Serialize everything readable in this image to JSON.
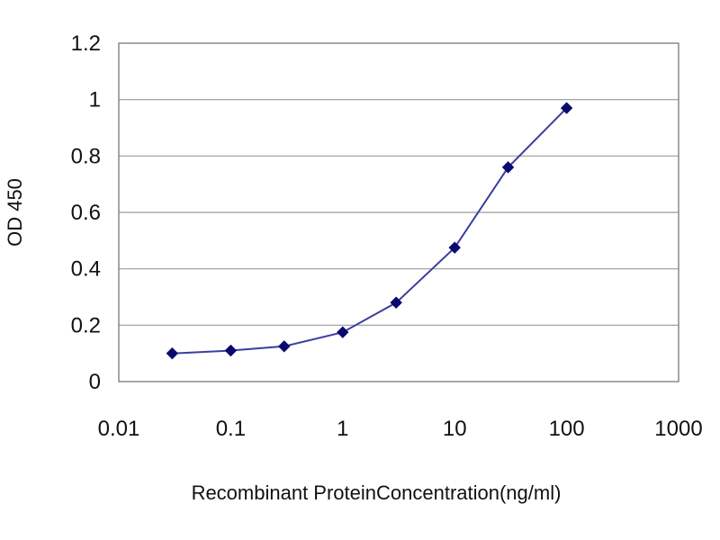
{
  "chart_data": {
    "type": "line",
    "title": "",
    "xlabel": "Recombinant ProteinConcentration(ng/ml)",
    "ylabel": "OD 450",
    "x_scale": "log",
    "xlim": [
      0.01,
      1000
    ],
    "ylim": [
      0,
      1.2
    ],
    "x_ticks": [
      0.01,
      0.1,
      1,
      10,
      100,
      1000
    ],
    "x_tick_labels": [
      "0.01",
      "0.1",
      "1",
      "10",
      "100",
      "1000"
    ],
    "y_ticks": [
      0,
      0.2,
      0.4,
      0.6,
      0.8,
      1,
      1.2
    ],
    "y_tick_labels": [
      "0",
      "0.2",
      "0.4",
      "0.6",
      "0.8",
      "1",
      "1.2"
    ],
    "grid": "horizontal",
    "legend": "none",
    "series": [
      {
        "x": [
          0.03,
          0.1,
          0.3,
          1,
          3,
          10,
          30,
          100
        ],
        "y": [
          0.1,
          0.11,
          0.125,
          0.175,
          0.28,
          0.475,
          0.76,
          0.97
        ],
        "color": "#3a3f9e",
        "marker_color": "#0a0a6e",
        "marker": "diamond"
      }
    ]
  }
}
